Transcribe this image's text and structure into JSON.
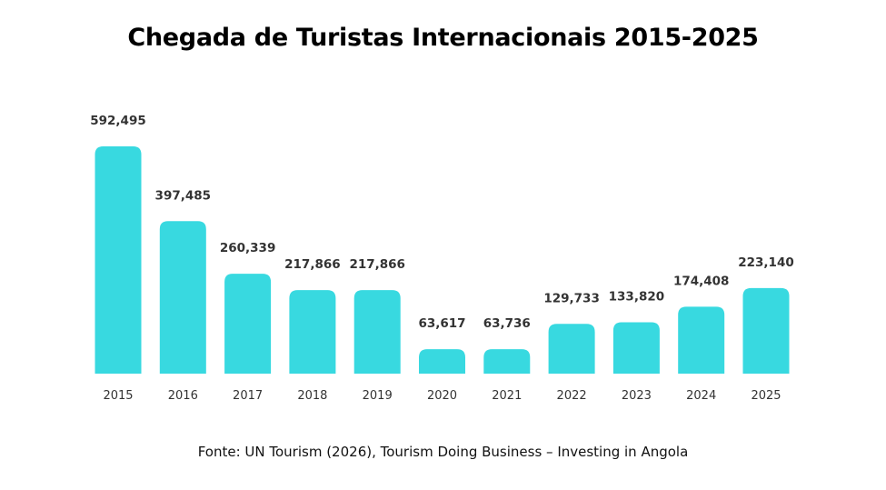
{
  "chart_data": {
    "type": "bar",
    "title": "Chegada de Turistas Internacionais 2015-2025",
    "source": "Fonte: UN Tourism (2026), Tourism Doing Business – Investing in Angola",
    "categories": [
      "2015",
      "2016",
      "2017",
      "2018",
      "2019",
      "2020",
      "2021",
      "2022",
      "2023",
      "2024",
      "2025"
    ],
    "values": [
      592495,
      397485,
      260339,
      217866,
      217866,
      63617,
      63736,
      129733,
      133820,
      174408,
      223140
    ],
    "value_labels": [
      "592,495",
      "397,485",
      "260,339",
      "217,866",
      "217,866",
      "63,617",
      "63,736",
      "129,733",
      "133,820",
      "174,408",
      "223,140"
    ],
    "bar_color": "#38D9E0",
    "grid": false,
    "legend": "none"
  }
}
